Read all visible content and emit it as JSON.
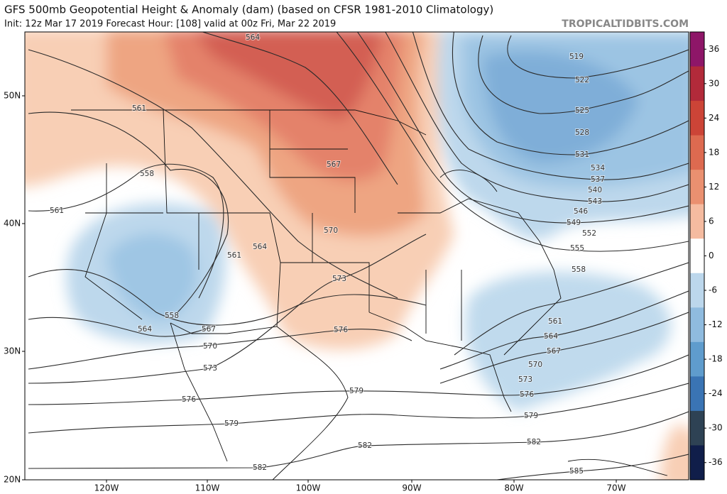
{
  "header": {
    "title": "GFS 500mb Geopotential Height & Anomaly (dam) (based on CFSR 1981-2010 Climatology)",
    "subtitle": "Init: 12z Mar 17 2019   Forecast Hour: [108]   valid at 00z Fri, Mar 22 2019",
    "site": "TROPICALTIDBITS.COM"
  },
  "map": {
    "longitude_labels": [
      "120W",
      "110W",
      "100W",
      "90W",
      "80W",
      "70W"
    ],
    "latitude_labels": [
      "50N",
      "40N",
      "30N",
      "20N"
    ],
    "contour_labels": [
      564,
      519,
      522,
      525,
      528,
      531,
      534,
      537,
      540,
      543,
      546,
      549,
      552,
      555,
      558,
      561,
      558,
      561,
      567,
      570,
      561,
      564,
      573,
      576,
      558,
      564,
      567,
      570,
      573,
      576,
      579,
      579,
      582,
      582,
      561,
      564,
      567,
      570,
      573,
      576,
      579,
      582,
      585
    ]
  },
  "colorbar": {
    "ticks": [
      36,
      30,
      24,
      18,
      12,
      6,
      0,
      -6,
      -12,
      -18,
      -24,
      -30,
      -36
    ],
    "colors": [
      "#8e1668",
      "#b22a3a",
      "#cc4437",
      "#dd6a50",
      "#ea9070",
      "#f5bba0",
      "#ffffff",
      "#bcd7ec",
      "#8fbbdf",
      "#5f9ccd",
      "#3a74b4",
      "#2e4254",
      "#101e4a"
    ]
  }
}
